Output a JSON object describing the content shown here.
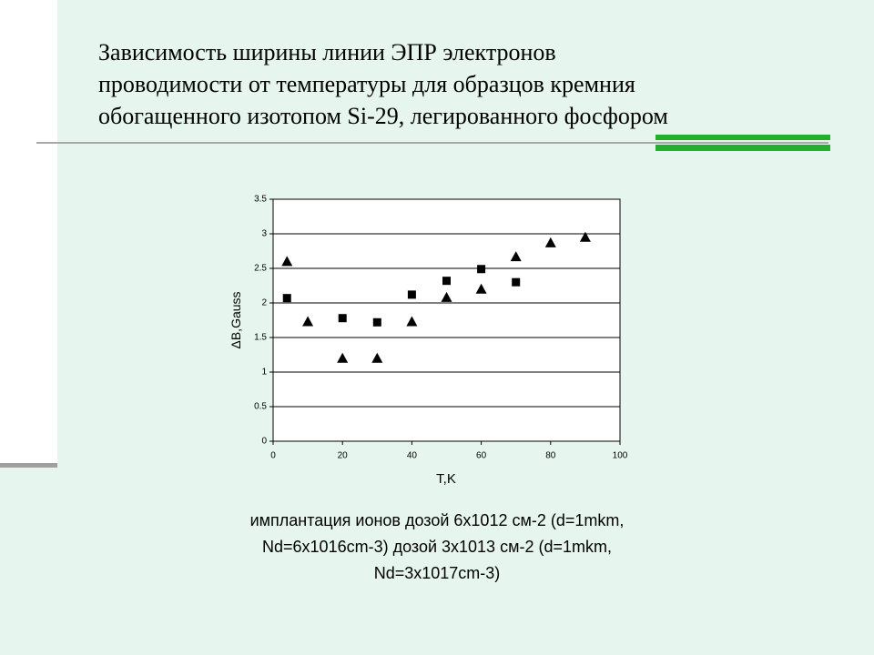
{
  "chart_data": {
    "type": "scatter",
    "title": [
      "Зависимость ширины линии ЭПР электронов",
      "проводимости от температуры для образцов кремния",
      "обогащенного изотопом Si-29, легированного фосфором"
    ],
    "x_label": "T,K",
    "y_label": "ΔB,Gauss",
    "xlim": [
      0,
      100
    ],
    "xticks": [
      0,
      20,
      40,
      60,
      80,
      100
    ],
    "ylim": [
      0,
      3.5
    ],
    "yticks": [
      0,
      0.5,
      1,
      1.5,
      2,
      2.5,
      3,
      3.5
    ],
    "grid": true,
    "series": [
      {
        "marker": "square",
        "color": "#000000",
        "x": [
          4,
          20,
          30,
          40,
          50,
          60,
          70
        ],
        "values": [
          2.07,
          1.78,
          1.72,
          2.12,
          2.32,
          2.49,
          2.3
        ]
      },
      {
        "marker": "triangle",
        "color": "#000000",
        "x": [
          4,
          10,
          20,
          30,
          40,
          50,
          60,
          70,
          80,
          90
        ],
        "values": [
          2.6,
          1.73,
          1.2,
          1.2,
          1.73,
          2.08,
          2.2,
          2.67,
          2.87,
          2.95
        ]
      }
    ],
    "caption": [
      "имплантация ионов дозой 6x1012 см-2 (d=1mkm,",
      "Nd=6x1016cm-3) дозой 3x1013 см-2 (d=1mkm,",
      "Nd=3x1017cm-3)"
    ]
  }
}
